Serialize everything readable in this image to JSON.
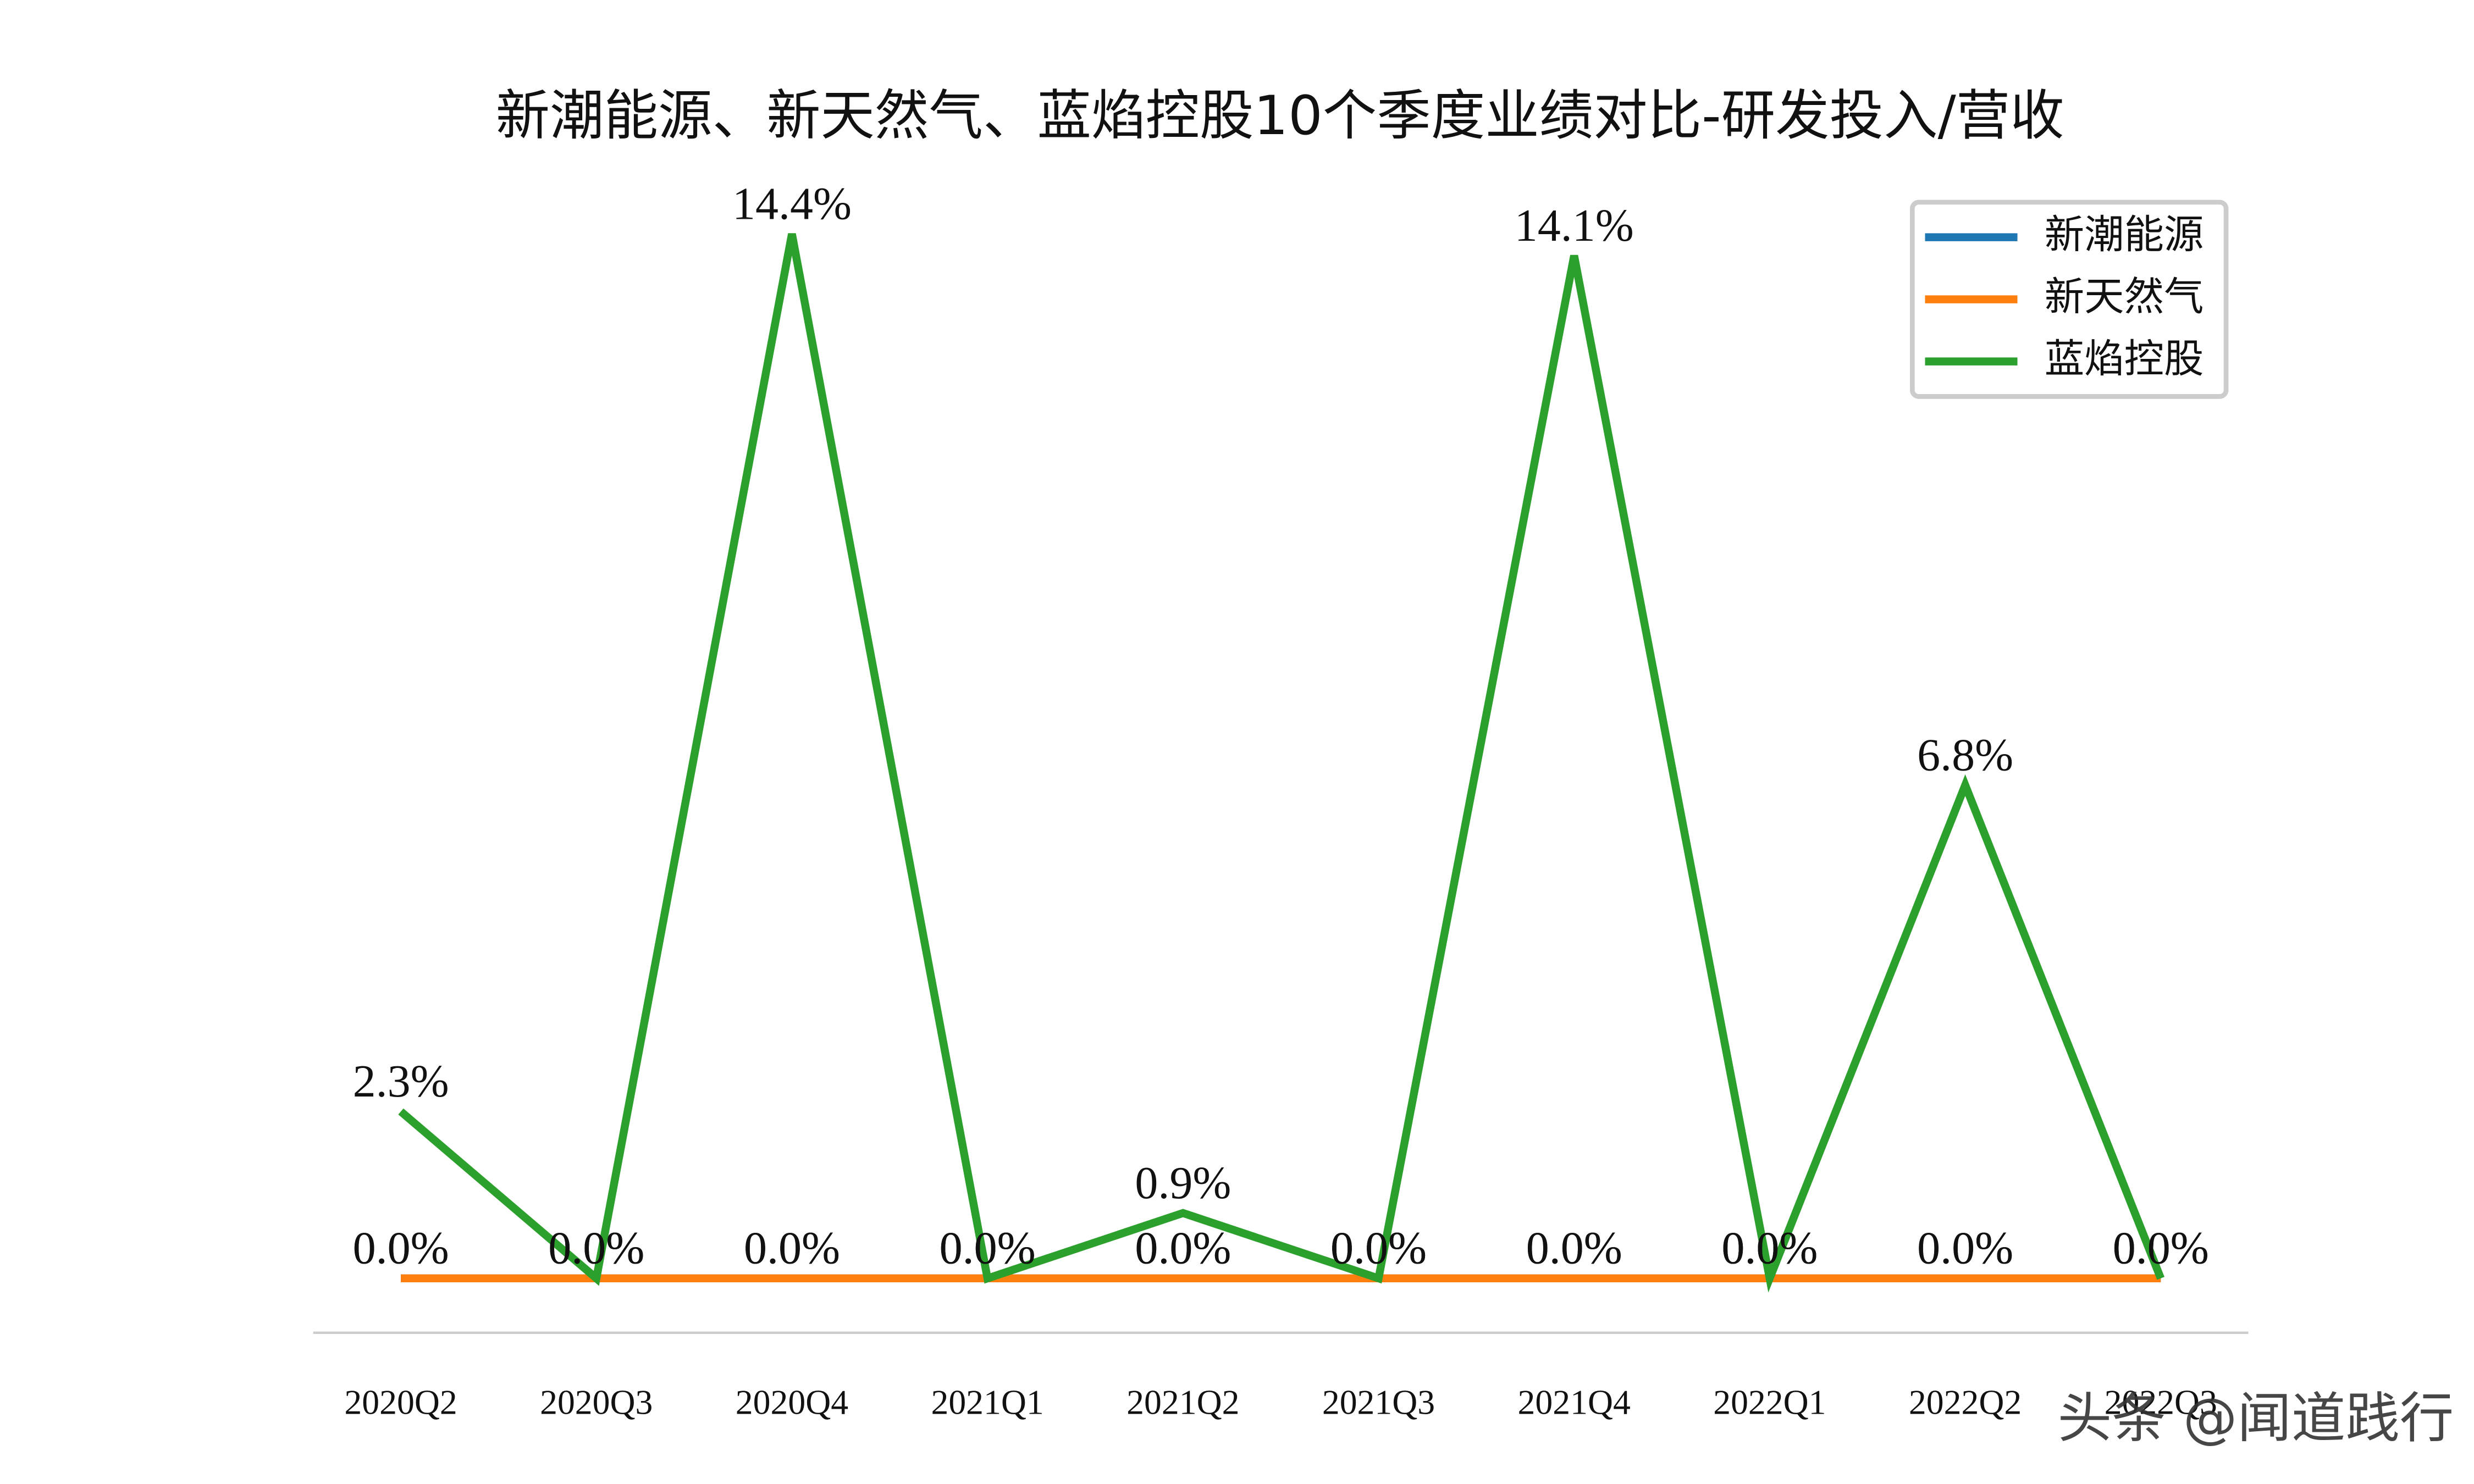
{
  "chart_data": {
    "type": "line",
    "title": "新潮能源、新天然气、蓝焰控股10个季度业绩对比-研发投入/营收",
    "categories": [
      "2020Q2",
      "2020Q3",
      "2020Q4",
      "2021Q1",
      "2021Q2",
      "2021Q3",
      "2021Q4",
      "2022Q1",
      "2022Q2",
      "2022Q3"
    ],
    "series": [
      {
        "name": "新潮能源",
        "color": "#1f77b4",
        "values": [
          0,
          0,
          0,
          0,
          0,
          0,
          0,
          0,
          0,
          0
        ],
        "value_labels": [
          "0.0%",
          "0.0%",
          "0.0%",
          "0.0%",
          "0.0%",
          "0.0%",
          "0.0%",
          "0.0%",
          "0.0%",
          "0.0%"
        ]
      },
      {
        "name": "新天然气",
        "color": "#ff7f0e",
        "values": [
          0,
          0,
          0,
          0,
          0,
          0,
          0,
          0,
          0,
          0
        ],
        "value_labels": [
          "0.0%",
          "0.0%",
          "0.0%",
          "0.0%",
          "0.0%",
          "0.0%",
          "0.0%",
          "0.0%",
          "0.0%",
          "0.0%"
        ]
      },
      {
        "name": "蓝焰控股",
        "color": "#2ca02c",
        "values": [
          2.3,
          0,
          14.4,
          0,
          0.9,
          0,
          14.1,
          0,
          6.8,
          0
        ],
        "value_labels": [
          "2.3%",
          "0.0%",
          "14.4%",
          "0.0%",
          "0.9%",
          "0.0%",
          "14.1%",
          "0.0%",
          "6.8%",
          "0.0%"
        ]
      }
    ],
    "ylim": [
      -0.75,
      15.1
    ],
    "legend": "upper right",
    "watermark": "头条 @闻道践行"
  }
}
